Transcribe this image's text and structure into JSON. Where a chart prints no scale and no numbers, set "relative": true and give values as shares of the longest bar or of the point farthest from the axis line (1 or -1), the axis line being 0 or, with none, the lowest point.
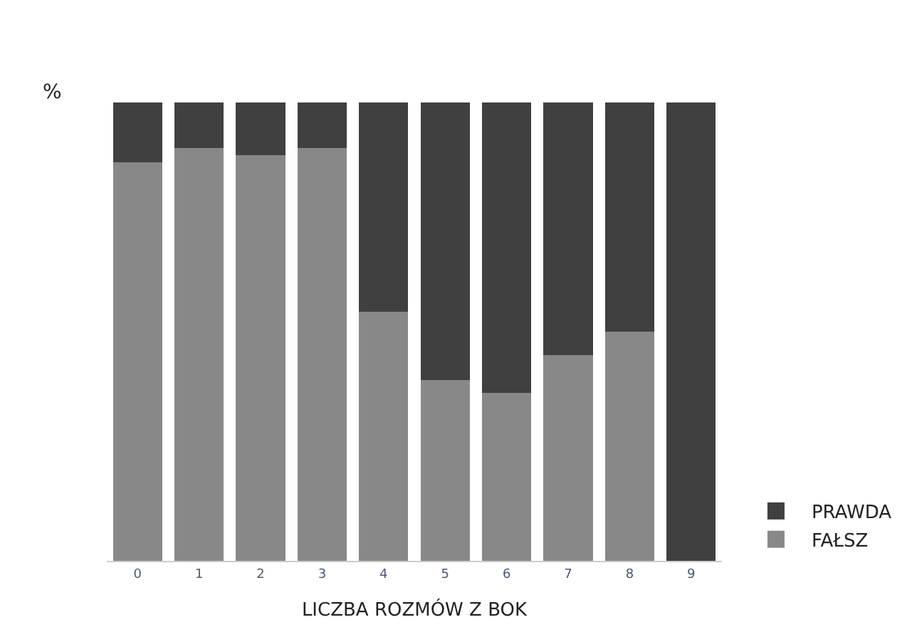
{
  "chart_data": {
    "type": "bar",
    "stacked": true,
    "relative": true,
    "ylabel": "%",
    "xlabel": "LICZBA ROZMÓW Z BOK",
    "categories": [
      "0",
      "1",
      "2",
      "3",
      "4",
      "5",
      "6",
      "7",
      "8",
      "9"
    ],
    "series": [
      {
        "name": "FAŁSZ",
        "color": "#888888",
        "values": [
          0.87,
          0.9,
          0.885,
          0.9,
          0.543,
          0.395,
          0.366,
          0.448,
          0.5,
          0
        ]
      },
      {
        "name": "PRAWDA",
        "color": "#404040",
        "values": [
          0.13,
          0.1,
          0.115,
          0.1,
          0.457,
          0.605,
          0.634,
          0.552,
          0.5,
          1.0
        ]
      }
    ],
    "legend": "bottom right"
  }
}
